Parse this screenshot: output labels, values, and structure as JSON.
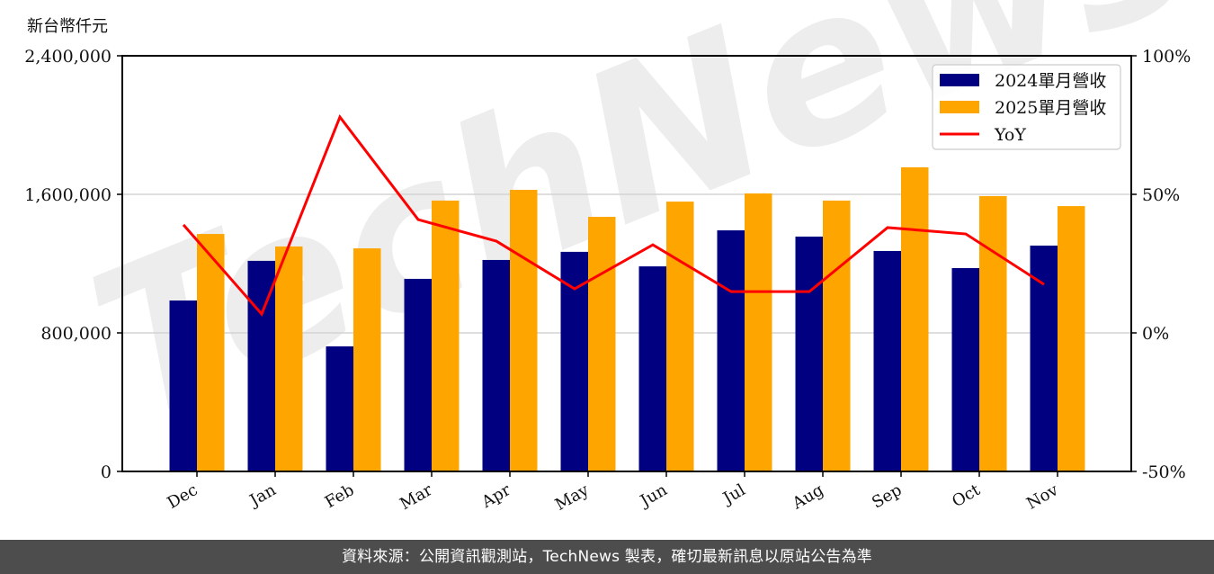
{
  "unit_label": "新台幣仟元",
  "footer": {
    "text": "資料來源：公開資訊觀測站，TechNews 製表，確切最新訊息以原站公告為準"
  },
  "watermark": "TechNews",
  "colors": {
    "series_2024": "#000080",
    "series_2025": "#FFA500",
    "yoy": "#FF0000",
    "grid": "#d3d3d3",
    "footer_bg": "#4d4d4d"
  },
  "chart_data": {
    "type": "bar",
    "title": "",
    "xlabel": "",
    "ylabel": "新台幣仟元",
    "y2label": "",
    "categories": [
      "Dec",
      "Jan",
      "Feb",
      "Mar",
      "Apr",
      "May",
      "Jun",
      "Jul",
      "Aug",
      "Sep",
      "Oct",
      "Nov"
    ],
    "series": [
      {
        "name": "2024單月營收",
        "type": "bar",
        "axis": "left",
        "values": [
          987000,
          1216000,
          722000,
          1112000,
          1221000,
          1268000,
          1184000,
          1392000,
          1356000,
          1273000,
          1174000,
          1304000
        ]
      },
      {
        "name": "2025單月營收",
        "type": "bar",
        "axis": "left",
        "values": [
          1371000,
          1299000,
          1288000,
          1564000,
          1626000,
          1470000,
          1558000,
          1605000,
          1564000,
          1756000,
          1590000,
          1532000
        ]
      },
      {
        "name": "YoY",
        "type": "line",
        "axis": "right",
        "unit": "%",
        "values": [
          39.0,
          6.8,
          77.9,
          40.9,
          33.1,
          15.9,
          31.8,
          14.9,
          14.9,
          38.0,
          35.7,
          17.5
        ]
      }
    ],
    "ylim": [
      0,
      2400000
    ],
    "y2lim": [
      -50,
      100
    ],
    "yticks": [
      "0",
      "800,000",
      "1,600,000",
      "2,400,000"
    ],
    "ytick_values": [
      0,
      800000,
      1600000,
      2400000
    ],
    "y2ticks": [
      "-50%",
      "0%",
      "50%",
      "100%"
    ],
    "y2tick_values": [
      -50,
      0,
      50,
      100
    ],
    "grid": true,
    "legend_position": "upper right",
    "legend": [
      "2024單月營收",
      "2025單月營收",
      "YoY"
    ]
  }
}
